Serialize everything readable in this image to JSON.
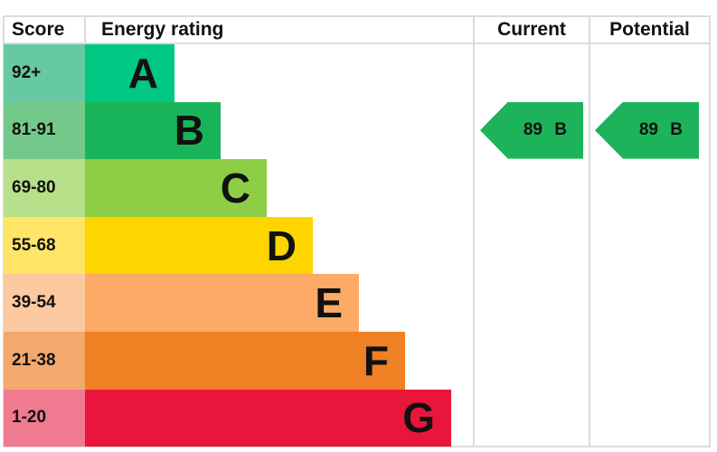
{
  "chart_data": {
    "type": "table",
    "headers": {
      "score": "Score",
      "rating": "Energy rating",
      "current": "Current",
      "potential": "Potential"
    },
    "bands": [
      {
        "score": "92+",
        "letter": "A",
        "color": "#00c781",
        "score_color": "#66c9a2"
      },
      {
        "score": "81-91",
        "letter": "B",
        "color": "#19b459",
        "score_color": "#74c98a"
      },
      {
        "score": "69-80",
        "letter": "C",
        "color": "#8dce46",
        "score_color": "#b8df8a"
      },
      {
        "score": "55-68",
        "letter": "D",
        "color": "#ffd500",
        "score_color": "#ffe566"
      },
      {
        "score": "39-54",
        "letter": "E",
        "color": "#fcaa65",
        "score_color": "#fdc9a0"
      },
      {
        "score": "21-38",
        "letter": "F",
        "color": "#ef8023",
        "score_color": "#f4a86c"
      },
      {
        "score": "1-20",
        "letter": "G",
        "color": "#e9153b",
        "score_color": "#f07b90"
      }
    ],
    "current": {
      "value": 89,
      "band": "B",
      "label": "89 B",
      "color": "#1db35a"
    },
    "potential": {
      "value": 89,
      "band": "B",
      "label": "89 B",
      "color": "#1db35a"
    }
  }
}
